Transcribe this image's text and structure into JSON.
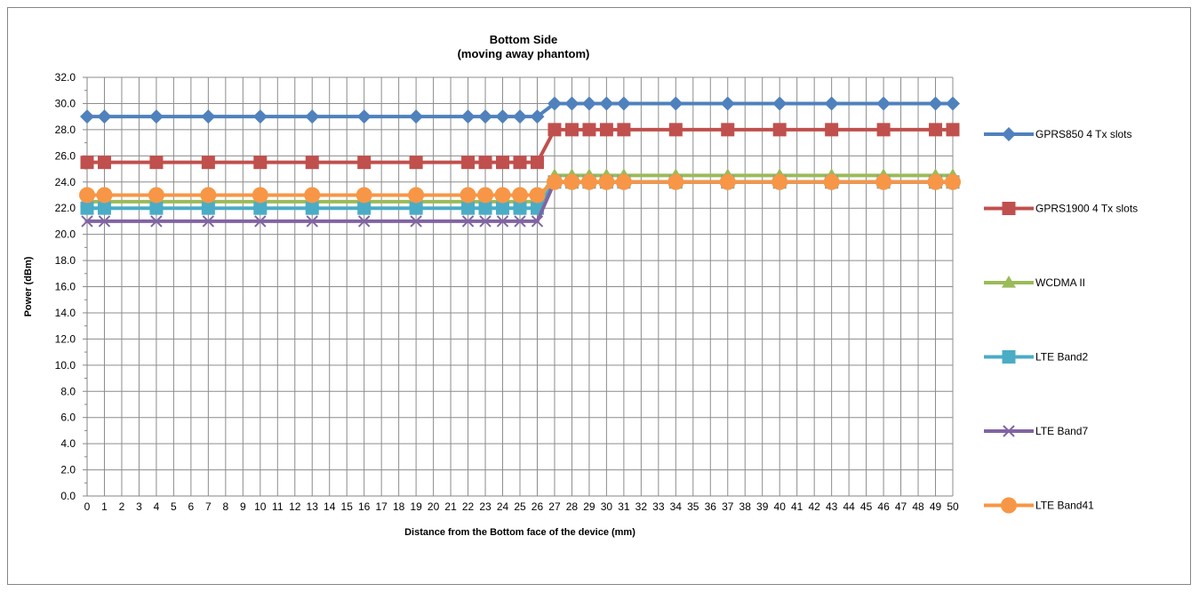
{
  "chart_data": {
    "type": "line",
    "title": "Bottom Side",
    "subtitle": "(moving away phantom)",
    "xlabel": "Distance from the Bottom face of the device (mm)",
    "ylabel": "Power (dBm)",
    "xlim": [
      0,
      50
    ],
    "ylim": [
      0,
      32
    ],
    "ytick_step": 2,
    "grid": true,
    "legend_position": "right",
    "series": [
      {
        "name": "GPRS850 4 Tx slots",
        "color": "#4F81BD",
        "marker": "diamond",
        "x": [
          0,
          1,
          4,
          7,
          10,
          13,
          16,
          19,
          22,
          23,
          24,
          25,
          26,
          27,
          28,
          29,
          30,
          31,
          34,
          37,
          40,
          43,
          46,
          49,
          50
        ],
        "y": [
          29,
          29,
          29,
          29,
          29,
          29,
          29,
          29,
          29,
          29,
          29,
          29,
          29,
          30,
          30,
          30,
          30,
          30,
          30,
          30,
          30,
          30,
          30,
          30,
          30
        ]
      },
      {
        "name": "GPRS1900 4 Tx slots",
        "color": "#C0504D",
        "marker": "square",
        "x": [
          0,
          1,
          4,
          7,
          10,
          13,
          16,
          19,
          22,
          23,
          24,
          25,
          26,
          27,
          28,
          29,
          30,
          31,
          34,
          37,
          40,
          43,
          46,
          49,
          50
        ],
        "y": [
          25.5,
          25.5,
          25.5,
          25.5,
          25.5,
          25.5,
          25.5,
          25.5,
          25.5,
          25.5,
          25.5,
          25.5,
          25.5,
          28,
          28,
          28,
          28,
          28,
          28,
          28,
          28,
          28,
          28,
          28,
          28
        ]
      },
      {
        "name": "WCDMA II",
        "color": "#9BBB59",
        "marker": "triangle",
        "x": [
          0,
          1,
          4,
          7,
          10,
          13,
          16,
          19,
          22,
          23,
          24,
          25,
          26,
          27,
          28,
          29,
          30,
          31,
          34,
          37,
          40,
          43,
          46,
          49,
          50
        ],
        "y": [
          22.5,
          22.5,
          22.5,
          22.5,
          22.5,
          22.5,
          22.5,
          22.5,
          22.5,
          22.5,
          22.5,
          22.5,
          22.5,
          24.5,
          24.5,
          24.5,
          24.5,
          24.5,
          24.5,
          24.5,
          24.5,
          24.5,
          24.5,
          24.5,
          24.5
        ]
      },
      {
        "name": "LTE Band2",
        "color": "#4BACC6",
        "marker": "square",
        "x": [
          0,
          1,
          4,
          7,
          10,
          13,
          16,
          19,
          22,
          23,
          24,
          25,
          26,
          27,
          28,
          29,
          30,
          31,
          34,
          37,
          40,
          43,
          46,
          49,
          50
        ],
        "y": [
          22,
          22,
          22,
          22,
          22,
          22,
          22,
          22,
          22,
          22,
          22,
          22,
          22,
          24,
          24,
          24,
          24,
          24,
          24,
          24,
          24,
          24,
          24,
          24,
          24
        ]
      },
      {
        "name": "LTE Band7",
        "color": "#8064A2",
        "marker": "x",
        "x": [
          0,
          1,
          4,
          7,
          10,
          13,
          16,
          19,
          22,
          23,
          24,
          25,
          26,
          27,
          28,
          29,
          30,
          31,
          34,
          37,
          40,
          43,
          46,
          49,
          50
        ],
        "y": [
          21,
          21,
          21,
          21,
          21,
          21,
          21,
          21,
          21,
          21,
          21,
          21,
          21,
          24,
          24,
          24,
          24,
          24,
          24,
          24,
          24,
          24,
          24,
          24,
          24
        ]
      },
      {
        "name": "LTE Band41",
        "color": "#F79646",
        "marker": "circle",
        "x": [
          0,
          1,
          4,
          7,
          10,
          13,
          16,
          19,
          22,
          23,
          24,
          25,
          26,
          27,
          28,
          29,
          30,
          31,
          34,
          37,
          40,
          43,
          46,
          49,
          50
        ],
        "y": [
          23,
          23,
          23,
          23,
          23,
          23,
          23,
          23,
          23,
          23,
          23,
          23,
          23,
          24,
          24,
          24,
          24,
          24,
          24,
          24,
          24,
          24,
          24,
          24,
          24
        ]
      }
    ]
  }
}
